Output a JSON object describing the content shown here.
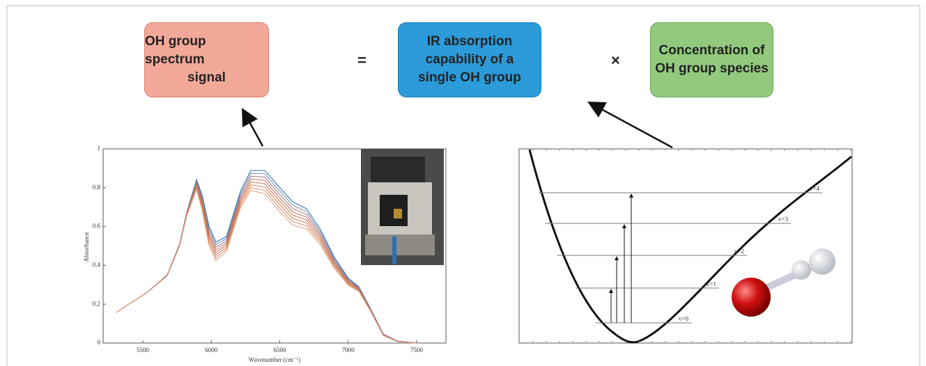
{
  "equation": {
    "terms": [
      [
        "OH group spectrum",
        "signal"
      ],
      [
        "IR absorption",
        "capability of a",
        "single OH group"
      ],
      [
        "Concentration of",
        "OH group species"
      ]
    ],
    "operators": [
      "=",
      "×"
    ]
  },
  "spectrum": {
    "y_axis_label": "Absorbance",
    "x_axis_label": "Wavenumber (cm⁻¹)",
    "x_ticks": [
      "5500",
      "6000",
      "6500",
      "7000",
      "7500"
    ],
    "y_ticks": [
      "0",
      "0.2",
      "0.4",
      "0.6",
      "0.8",
      "1"
    ]
  },
  "potential": {
    "levels": [
      "v=0",
      "v=1",
      "v=2",
      "v=3",
      "v=4"
    ]
  }
}
